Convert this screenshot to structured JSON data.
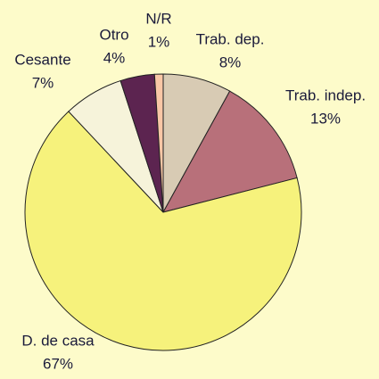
{
  "chart_data": {
    "type": "pie",
    "categories": [
      "Trab. dep.",
      "Trab. indep.",
      "D. de casa",
      "Cesante",
      "Otro",
      "N/R"
    ],
    "values": [
      8,
      13,
      67,
      7,
      4,
      1
    ],
    "value_labels": [
      "8%",
      "13%",
      "67%",
      "7%",
      "4%",
      "1%"
    ],
    "colors": [
      "#d8cbb4",
      "#b8707a",
      "#f6f27c",
      "#f6f3da",
      "#5c2450",
      "#f9c7a6"
    ]
  }
}
